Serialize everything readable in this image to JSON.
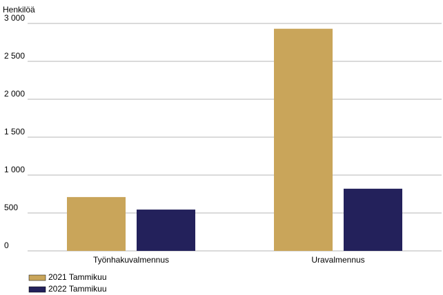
{
  "chart_data": {
    "type": "bar",
    "y_axis_label": "Henkilöä",
    "categories": [
      "Työnhakuvalmennus",
      "Uravalmennus"
    ],
    "series": [
      {
        "name": "2021 Tammikuu",
        "color": "#c9a55a",
        "values": [
          710,
          2930
        ]
      },
      {
        "name": "2022 Tammikuu",
        "color": "#23215b",
        "values": [
          545,
          820
        ]
      }
    ],
    "ylim": [
      0,
      3000
    ],
    "yticks": [
      0,
      500,
      {
        "value": 1000,
        "label": "1 000"
      },
      {
        "value": 1500,
        "label": "1 500"
      },
      {
        "value": 2000,
        "label": "2 000"
      },
      {
        "value": 2500,
        "label": "2 500"
      },
      {
        "value": 3000,
        "label": "3 000"
      }
    ],
    "grid": true
  }
}
